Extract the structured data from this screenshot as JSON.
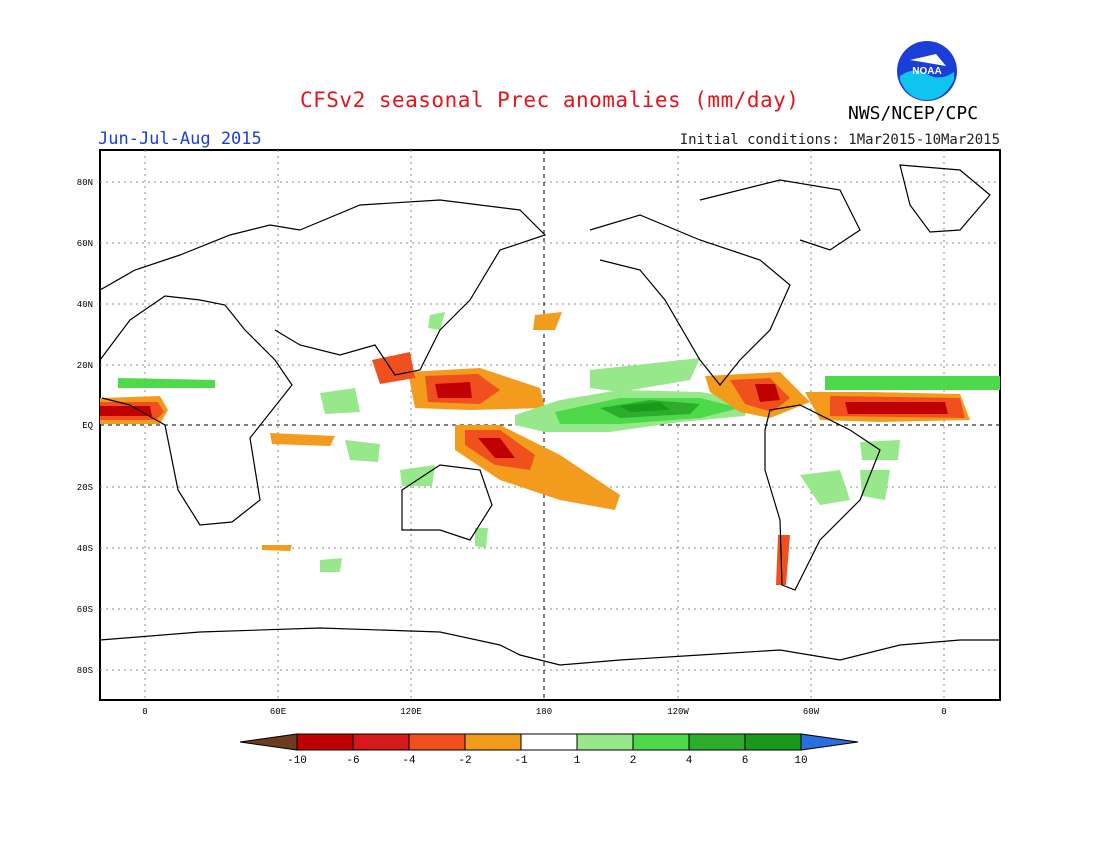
{
  "header": {
    "title": "CFSv2 seasonal Prec anomalies (mm/day)",
    "agency": "NWS/NCEP/CPC",
    "logo_text": "NOAA",
    "season": "Jun-Jul-Aug 2015",
    "initial_conditions": "Initial conditions: 1Mar2015-10Mar2015"
  },
  "axes": {
    "lat_labels": [
      "80N",
      "60N",
      "40N",
      "20N",
      "EQ",
      "20S",
      "40S",
      "60S",
      "80S"
    ],
    "lon_labels": [
      "0",
      "60E",
      "120E",
      "180",
      "120W",
      "60W",
      "0"
    ]
  },
  "colorbar": {
    "labels": [
      "-10",
      "-6",
      "-4",
      "-2",
      "-1",
      "1",
      "2",
      "4",
      "6",
      "10"
    ],
    "colors": [
      "#6e3b1f",
      "#c00000",
      "#d61a1a",
      "#f0501e",
      "#f39b1d",
      "#ffffff",
      "#96e88a",
      "#4dd94a",
      "#2cae2c",
      "#1a9a1a",
      "#2a6fe0"
    ]
  }
}
